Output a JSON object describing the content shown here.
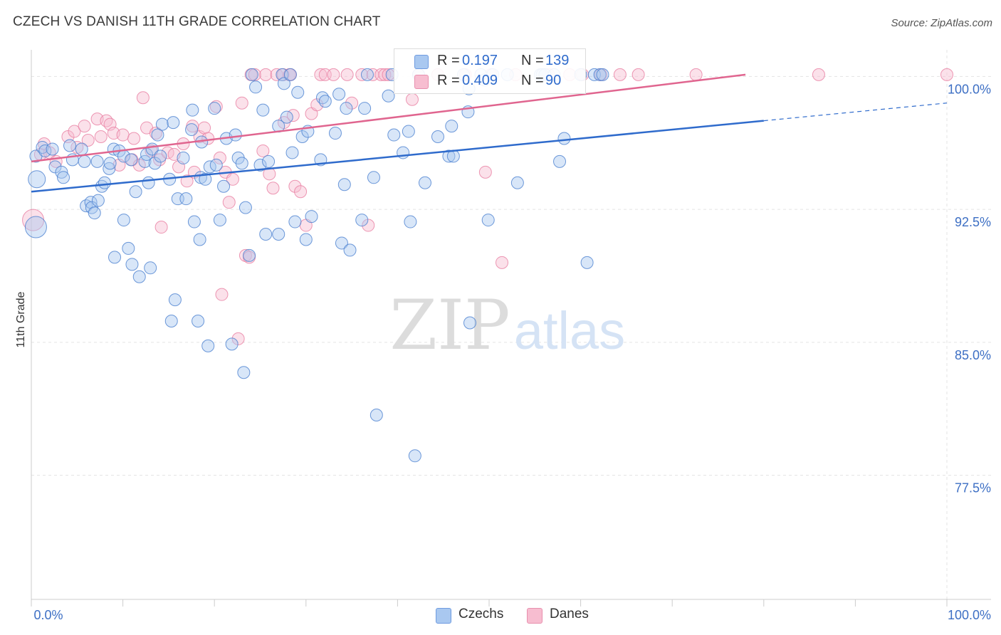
{
  "title": "CZECH VS DANISH 11TH GRADE CORRELATION CHART",
  "source": "Source: ZipAtlas.com",
  "watermark": {
    "zip": "ZIP",
    "atlas": "atlas"
  },
  "legend": {
    "czechs": {
      "r_label": "R =",
      "r_value": "0.197",
      "n_label": "N =",
      "n_value": "139"
    },
    "danes": {
      "r_label": "R =",
      "r_value": "0.409",
      "n_label": "N =",
      "n_value": "90"
    }
  },
  "bottom_legend": {
    "czechs": "Czechs",
    "danes": "Danes"
  },
  "colors": {
    "czech_fill": "#a9c8f0",
    "czech_stroke": "#4a7fd0",
    "czech_line": "#2f6bcc",
    "dane_fill": "#f7bdd0",
    "dane_stroke": "#e87ea1",
    "dane_line": "#e0658f",
    "tick_label": "#3d6fc4",
    "grid": "#e3e3e3"
  },
  "chart_data": {
    "type": "scatter",
    "title": "CZECH VS DANISH 11TH GRADE CORRELATION CHART",
    "xlabel": "",
    "ylabel": "11th Grade",
    "xlim": [
      0,
      100
    ],
    "ylim": [
      70.5,
      101.5
    ],
    "x_tick_labels": [
      "0.0%",
      "100.0%"
    ],
    "y_ticks": [
      100.0,
      92.5,
      85.0,
      77.5
    ],
    "y_tick_labels": [
      "100.0%",
      "92.5%",
      "85.0%",
      "77.5%"
    ],
    "grid": true,
    "legend_placement": "top-center",
    "series": [
      {
        "name": "Czechs",
        "r": 0.197,
        "n": 139,
        "trend": {
          "x": [
            0,
            80,
            100
          ],
          "y": [
            93.5,
            97.5,
            98.5
          ],
          "solid_until_x": 80
        },
        "points": [
          [
            0.5,
            95.5,
            1
          ],
          [
            0.6,
            94.2,
            2
          ],
          [
            0.5,
            91.5,
            3
          ],
          [
            1.2,
            96,
            1
          ],
          [
            1.5,
            95.8,
            1
          ],
          [
            2.3,
            95.9,
            1
          ],
          [
            2.6,
            94.9,
            1
          ],
          [
            3.3,
            94.6,
            1
          ],
          [
            3.5,
            94.3,
            1
          ],
          [
            4.2,
            96.1,
            1
          ],
          [
            4.5,
            95.3,
            1
          ],
          [
            5.5,
            95.9,
            1
          ],
          [
            5.8,
            95.2,
            1
          ],
          [
            6.0,
            92.7,
            1
          ],
          [
            6.5,
            92.9,
            1
          ],
          [
            6.6,
            92.6,
            1
          ],
          [
            6.9,
            92.3,
            1
          ],
          [
            7.3,
            93,
            1
          ],
          [
            7.2,
            95.2,
            1
          ],
          [
            7.7,
            93.8,
            1
          ],
          [
            8.0,
            94,
            1
          ],
          [
            8.5,
            94.8,
            1
          ],
          [
            8.6,
            95.1,
            1
          ],
          [
            9.0,
            95.9,
            1
          ],
          [
            9.1,
            89.8,
            1
          ],
          [
            9.6,
            95.8,
            1
          ],
          [
            10.1,
            95.5,
            1
          ],
          [
            10.1,
            91.9,
            1
          ],
          [
            10.6,
            90.3,
            1
          ],
          [
            10.9,
            95.3,
            1
          ],
          [
            11.0,
            89.4,
            1
          ],
          [
            11.4,
            93.5,
            1
          ],
          [
            11.8,
            88.7,
            1
          ],
          [
            12.4,
            95.2,
            1
          ],
          [
            12.6,
            95.6,
            1
          ],
          [
            12.8,
            94,
            1
          ],
          [
            13.0,
            89.2,
            1
          ],
          [
            13.2,
            95.9,
            1
          ],
          [
            13.5,
            95.1,
            1
          ],
          [
            13.8,
            96.7,
            1
          ],
          [
            14.1,
            95.5,
            1
          ],
          [
            14.3,
            97.3,
            1
          ],
          [
            15.1,
            94.2,
            1
          ],
          [
            15.3,
            86.2,
            1
          ],
          [
            15.5,
            97.4,
            1
          ],
          [
            15.7,
            87.4,
            1
          ],
          [
            16.0,
            93.1,
            1
          ],
          [
            16.6,
            95.4,
            1
          ],
          [
            16.9,
            93.1,
            1
          ],
          [
            17.5,
            97,
            1
          ],
          [
            17.6,
            98.1,
            1
          ],
          [
            17.8,
            91.8,
            1
          ],
          [
            18.2,
            86.2,
            1
          ],
          [
            18.4,
            90.8,
            1
          ],
          [
            18.5,
            94.3,
            1
          ],
          [
            18.6,
            96.3,
            1
          ],
          [
            19.0,
            94.2,
            1
          ],
          [
            19.3,
            84.8,
            1
          ],
          [
            19.5,
            94.9,
            1
          ],
          [
            20.0,
            98.2,
            1
          ],
          [
            20.2,
            95,
            1
          ],
          [
            20.6,
            91.9,
            1
          ],
          [
            21.0,
            93.8,
            1
          ],
          [
            21.3,
            96.5,
            1
          ],
          [
            21.9,
            84.9,
            1
          ],
          [
            22.3,
            96.7,
            1
          ],
          [
            22.6,
            95.4,
            1
          ],
          [
            23.0,
            95.1,
            1
          ],
          [
            23.2,
            83.3,
            1
          ],
          [
            23.4,
            92.6,
            1
          ],
          [
            23.8,
            89.9,
            1
          ],
          [
            24.1,
            100.1,
            1
          ],
          [
            24.5,
            99.4,
            1
          ],
          [
            25.0,
            95,
            1
          ],
          [
            25.3,
            98.1,
            1
          ],
          [
            25.6,
            91.1,
            1
          ],
          [
            25.9,
            95.2,
            1
          ],
          [
            27.0,
            97.2,
            1
          ],
          [
            27.0,
            91.1,
            1
          ],
          [
            27.4,
            100.1,
            1
          ],
          [
            27.6,
            99.6,
            1
          ],
          [
            27.9,
            97.7,
            1
          ],
          [
            28.3,
            100.1,
            1
          ],
          [
            28.5,
            95.7,
            1
          ],
          [
            28.8,
            91.8,
            1
          ],
          [
            29.1,
            99.1,
            1
          ],
          [
            29.6,
            96.6,
            1
          ],
          [
            30.0,
            90.8,
            1
          ],
          [
            30.2,
            96.9,
            1
          ],
          [
            30.6,
            92.1,
            1
          ],
          [
            31.6,
            95.3,
            1
          ],
          [
            31.8,
            98.8,
            1
          ],
          [
            32.1,
            98.6,
            1
          ],
          [
            33.2,
            96.8,
            1
          ],
          [
            33.6,
            99,
            1
          ],
          [
            33.9,
            90.6,
            1
          ],
          [
            34.2,
            93.9,
            1
          ],
          [
            34.4,
            98.2,
            1
          ],
          [
            34.8,
            90.2,
            1
          ],
          [
            36.1,
            91.9,
            1
          ],
          [
            36.4,
            98.2,
            1
          ],
          [
            36.7,
            100.1,
            1
          ],
          [
            37.4,
            94.3,
            1
          ],
          [
            37.7,
            80.9,
            1
          ],
          [
            39.0,
            98.9,
            1
          ],
          [
            39.4,
            100.1,
            1
          ],
          [
            39.6,
            96.7,
            1
          ],
          [
            40.6,
            95.7,
            1
          ],
          [
            41.2,
            96.9,
            1
          ],
          [
            41.4,
            91.8,
            1
          ],
          [
            41.9,
            78.6,
            1
          ],
          [
            42.3,
            100.1,
            1
          ],
          [
            43.0,
            94,
            1
          ],
          [
            44.4,
            96.6,
            1
          ],
          [
            45.6,
            95.5,
            1
          ],
          [
            45.9,
            97.2,
            1
          ],
          [
            46.1,
            95.5,
            1
          ],
          [
            47.2,
            100.1,
            1
          ],
          [
            47.7,
            98,
            1
          ],
          [
            47.8,
            99.3,
            1
          ],
          [
            47.9,
            86.1,
            1
          ],
          [
            49.1,
            100.1,
            1
          ],
          [
            49.5,
            99.8,
            1
          ],
          [
            49.9,
            91.9,
            1
          ],
          [
            50.4,
            100.1,
            1
          ],
          [
            52.0,
            100.1,
            1
          ],
          [
            53.1,
            94,
            1
          ],
          [
            55.6,
            100.1,
            1
          ],
          [
            55.8,
            100.1,
            1
          ],
          [
            56.1,
            100.1,
            1
          ],
          [
            57.1,
            100.1,
            1
          ],
          [
            57.7,
            95.2,
            1
          ],
          [
            58.2,
            96.5,
            1
          ],
          [
            60.0,
            100.1,
            1
          ],
          [
            60.7,
            89.5,
            1
          ],
          [
            61.5,
            100.1,
            1
          ],
          [
            62.1,
            100.1,
            1
          ],
          [
            62.4,
            100.1,
            1
          ]
        ]
      },
      {
        "name": "Danes",
        "r": 0.409,
        "n": 90,
        "trend": {
          "x": [
            0,
            78
          ],
          "y": [
            95.2,
            100.1
          ]
        },
        "points": [
          [
            0.2,
            91.9,
            3
          ],
          [
            1.0,
            95.6,
            1
          ],
          [
            1.4,
            96.2,
            1
          ],
          [
            2.0,
            95.7,
            1
          ],
          [
            2.7,
            95.2,
            1
          ],
          [
            4.0,
            96.6,
            1
          ],
          [
            4.7,
            96.9,
            1
          ],
          [
            5.0,
            96,
            1
          ],
          [
            5.8,
            97.2,
            1
          ],
          [
            6.2,
            96.4,
            1
          ],
          [
            7.2,
            97.6,
            1
          ],
          [
            7.6,
            96.6,
            1
          ],
          [
            8.2,
            97.5,
            1
          ],
          [
            8.6,
            97.3,
            1
          ],
          [
            9.0,
            96.8,
            1
          ],
          [
            9.6,
            95,
            1
          ],
          [
            10.0,
            96.7,
            1
          ],
          [
            11.0,
            95.3,
            1
          ],
          [
            11.2,
            96.5,
            1
          ],
          [
            11.8,
            95,
            1
          ],
          [
            12.2,
            98.8,
            1
          ],
          [
            12.6,
            97.1,
            1
          ],
          [
            13.1,
            95.8,
            1
          ],
          [
            13.6,
            96.8,
            1
          ],
          [
            14.0,
            95.3,
            1
          ],
          [
            14.2,
            91.5,
            1
          ],
          [
            14.9,
            95.7,
            1
          ],
          [
            15.6,
            95.6,
            1
          ],
          [
            16.1,
            94.9,
            1
          ],
          [
            16.6,
            96.2,
            1
          ],
          [
            17.0,
            94.1,
            1
          ],
          [
            17.6,
            97.2,
            1
          ],
          [
            17.8,
            94.6,
            1
          ],
          [
            18.4,
            96.6,
            1
          ],
          [
            18.9,
            97.1,
            1
          ],
          [
            19.3,
            96.5,
            1
          ],
          [
            20.2,
            98.3,
            1
          ],
          [
            20.6,
            95.4,
            1
          ],
          [
            21.2,
            94.6,
            1
          ],
          [
            21.6,
            92.9,
            1
          ],
          [
            22.0,
            94.2,
            1
          ],
          [
            20.8,
            87.7,
            1
          ],
          [
            22.6,
            85.2,
            1
          ],
          [
            23.0,
            98.5,
            1
          ],
          [
            23.4,
            89.9,
            1
          ],
          [
            23.8,
            89.8,
            1
          ],
          [
            24.0,
            100.1,
            1
          ],
          [
            24.4,
            100.1,
            1
          ],
          [
            25.3,
            95.8,
            1
          ],
          [
            25.6,
            100.1,
            1
          ],
          [
            26.0,
            94.5,
            1
          ],
          [
            26.4,
            93.7,
            1
          ],
          [
            26.8,
            100.1,
            1
          ],
          [
            27.5,
            100.1,
            1
          ],
          [
            27.6,
            97.4,
            1
          ],
          [
            28.2,
            100.1,
            1
          ],
          [
            28.3,
            100.1,
            1
          ],
          [
            28.6,
            97.8,
            1
          ],
          [
            28.8,
            93.8,
            1
          ],
          [
            29.4,
            93.5,
            1
          ],
          [
            30.0,
            91.6,
            1
          ],
          [
            30.6,
            97.9,
            1
          ],
          [
            31.2,
            98.4,
            1
          ],
          [
            31.6,
            100.1,
            1
          ],
          [
            32.1,
            100.1,
            1
          ],
          [
            33.0,
            100.1,
            1
          ],
          [
            34.5,
            100.1,
            1
          ],
          [
            35.0,
            98.5,
            1
          ],
          [
            36.1,
            100.1,
            1
          ],
          [
            36.8,
            91.6,
            1
          ],
          [
            37.3,
            100.1,
            1
          ],
          [
            38.2,
            100.1,
            1
          ],
          [
            38.6,
            100.1,
            1
          ],
          [
            39.0,
            100.1,
            1
          ],
          [
            41.6,
            98.7,
            1
          ],
          [
            42.3,
            100.1,
            1
          ],
          [
            44.4,
            100.1,
            1
          ],
          [
            47.4,
            100.1,
            1
          ],
          [
            49.6,
            94.6,
            1
          ],
          [
            50.2,
            100.1,
            1
          ],
          [
            51.4,
            89.5,
            1
          ],
          [
            52.9,
            100.1,
            1
          ],
          [
            56.5,
            100.1,
            1
          ],
          [
            58.8,
            100.1,
            1
          ],
          [
            60.2,
            100.1,
            1
          ],
          [
            62.2,
            100.1,
            1
          ],
          [
            64.3,
            100.1,
            1
          ],
          [
            66.3,
            100.1,
            1
          ],
          [
            72.6,
            100.1,
            1
          ],
          [
            86.0,
            100.1,
            1
          ],
          [
            100,
            100.1,
            1
          ]
        ]
      }
    ]
  }
}
